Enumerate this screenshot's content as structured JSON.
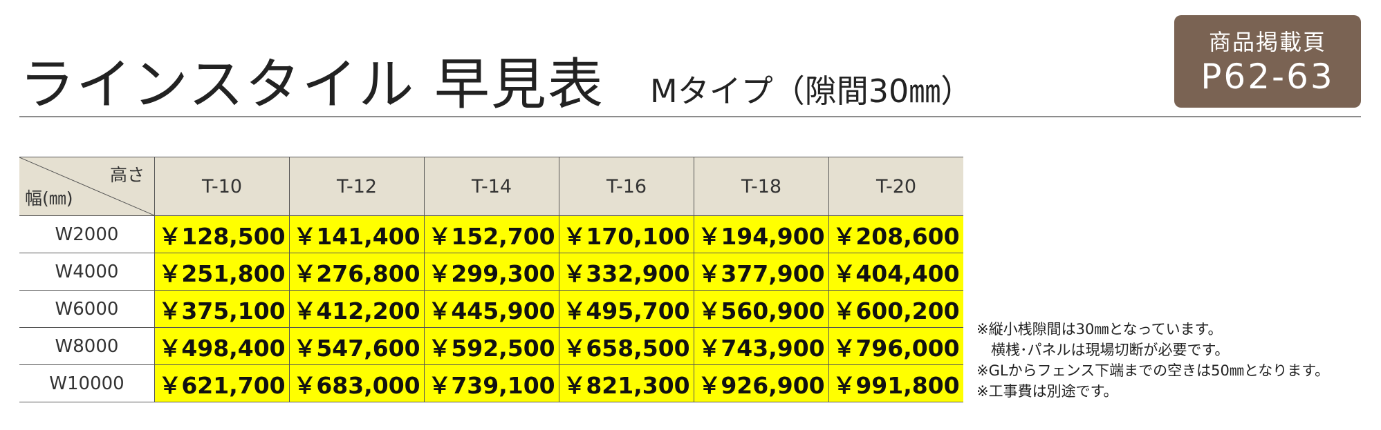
{
  "header": {
    "title": "ラインスタイル 早見表",
    "subtitle": "Mタイプ（隙間30㎜）",
    "badge": {
      "label": "商品掲載頁",
      "pages": "P62-63"
    }
  },
  "table": {
    "corner": {
      "top": "高さ",
      "bottom": "幅(㎜)"
    },
    "columns": [
      "T-10",
      "T-12",
      "T-14",
      "T-16",
      "T-18",
      "T-20"
    ],
    "rows": [
      {
        "label": "W2000",
        "prices": [
          "￥128,500",
          "￥141,400",
          "￥152,700",
          "￥170,100",
          "￥194,900",
          "￥208,600"
        ]
      },
      {
        "label": "W4000",
        "prices": [
          "￥251,800",
          "￥276,800",
          "￥299,300",
          "￥332,900",
          "￥377,900",
          "￥404,400"
        ]
      },
      {
        "label": "W6000",
        "prices": [
          "￥375,100",
          "￥412,200",
          "￥445,900",
          "￥495,700",
          "￥560,900",
          "￥600,200"
        ]
      },
      {
        "label": "W8000",
        "prices": [
          "￥498,400",
          "￥547,600",
          "￥592,500",
          "￥658,500",
          "￥743,900",
          "￥796,000"
        ]
      },
      {
        "label": "W10000",
        "prices": [
          "￥621,700",
          "￥683,000",
          "￥739,100",
          "￥821,300",
          "￥926,900",
          "￥991,800"
        ]
      }
    ]
  },
  "notes": [
    "※縦小桟隙間は30㎜となっています。",
    "　横桟･パネルは現場切断が必要です。",
    "※GLからフェンス下端までの空きは50㎜となります。",
    "※工事費は別途です。"
  ]
}
